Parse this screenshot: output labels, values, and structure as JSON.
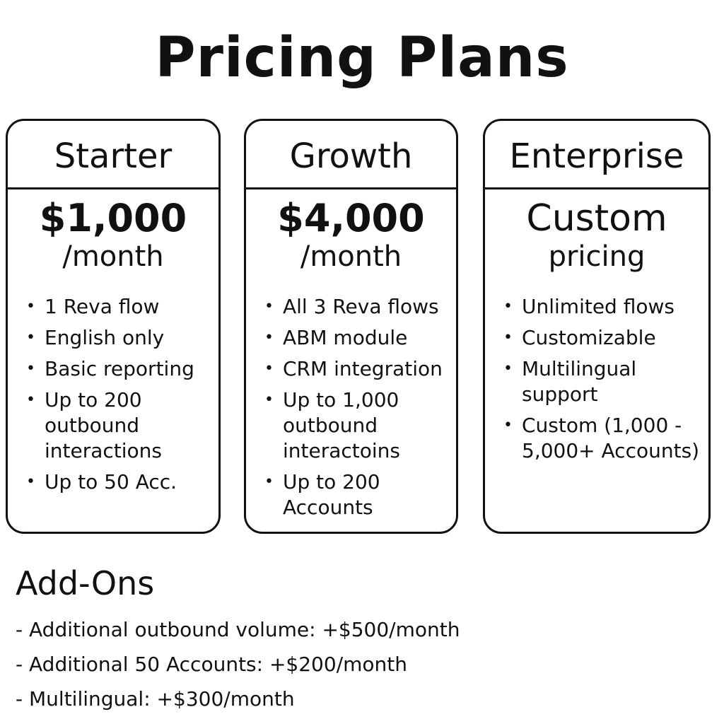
{
  "title": "Pricing Plans",
  "plans": [
    {
      "name": "Starter",
      "price": "$1,000",
      "period": "/month",
      "features": [
        "1 Reva flow",
        "English only",
        "Basic reporting",
        "Up to 200 outbound interactions",
        "Up to 50 Acc."
      ]
    },
    {
      "name": "Growth",
      "price": "$4,000",
      "period": "/month",
      "features": [
        "All 3 Reva flows",
        "ABM module",
        "CRM integration",
        "Up to 1,000 outbound interactoins",
        "Up to 200 Accounts"
      ]
    },
    {
      "name": "Enterprise",
      "price_line1": "Custom",
      "price_line2": "pricing",
      "features": [
        "Unlimited flows",
        "Customizable",
        "Multilingual support",
        "Custom (1,000 - 5,000+ Accounts)"
      ]
    }
  ],
  "addons": {
    "title": "Add-Ons",
    "items": [
      "- Additional outbound volume: +$500/month",
      "- Additional 50 Accounts: +$200/month",
      "- Multilingual: +$300/month"
    ]
  }
}
